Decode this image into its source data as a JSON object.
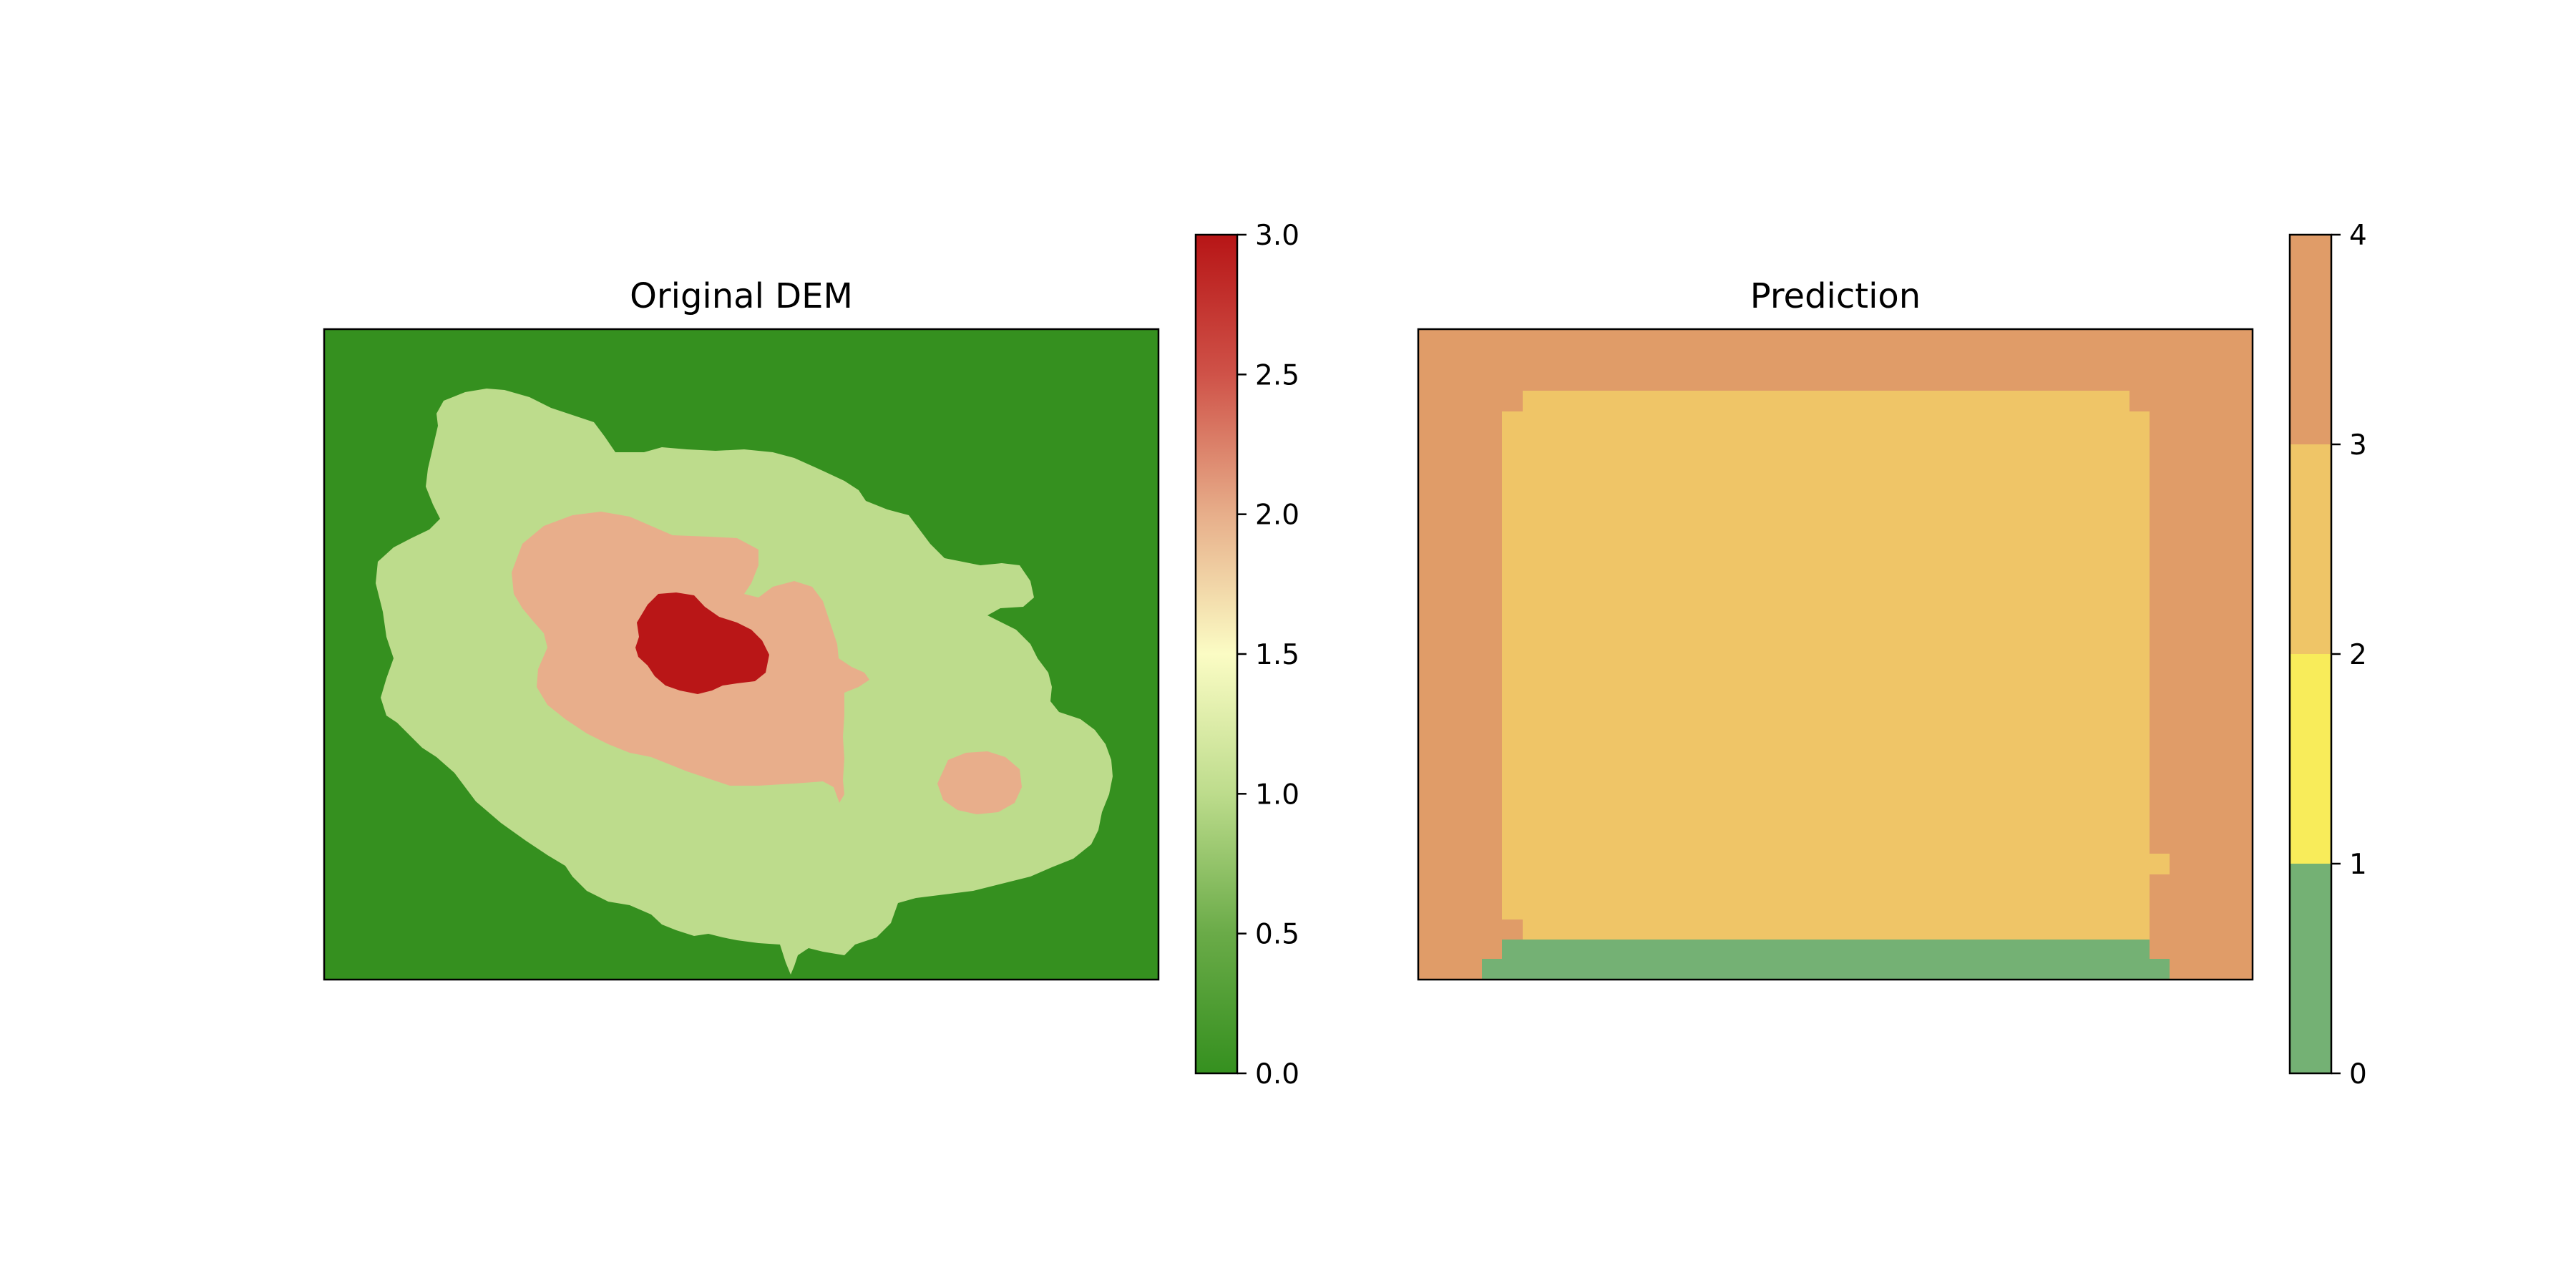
{
  "chart_data": [
    {
      "type": "heatmap",
      "title": "Original DEM",
      "xlabel": "",
      "ylabel": "",
      "axes_ticks_visible": false,
      "colorbar": {
        "type": "continuous",
        "range": [
          0.0,
          3.0
        ],
        "ticks": [
          "0.0",
          "0.5",
          "1.0",
          "1.5",
          "2.0",
          "2.5",
          "3.0"
        ],
        "colormap_stops": [
          "#35901f",
          "#6aab48",
          "#bddc8c",
          "#fbfcc4",
          "#e7ae8a",
          "#cf5248",
          "#b71516"
        ]
      },
      "regions": [
        {
          "level": 0,
          "color": "#35901f",
          "description": "background"
        },
        {
          "level": 1,
          "color": "#bddc8c"
        },
        {
          "level": 2,
          "color": "#e8ae8b"
        },
        {
          "level": 3,
          "color": "#b91617"
        }
      ]
    },
    {
      "type": "heatmap",
      "title": "Prediction",
      "xlabel": "",
      "ylabel": "",
      "axes_ticks_visible": false,
      "colorbar": {
        "type": "discrete",
        "range": [
          0,
          4
        ],
        "ticks": [
          "0",
          "1",
          "2",
          "3",
          "4"
        ],
        "bins": [
          {
            "from": 0,
            "to": 1,
            "color": "#74b174"
          },
          {
            "from": 1,
            "to": 2,
            "color": "#f8ec5a"
          },
          {
            "from": 2,
            "to": 3,
            "color": "#efc567"
          },
          {
            "from": 3,
            "to": 4,
            "color": "#e09c68"
          }
        ]
      },
      "classes": [
        {
          "value": 0,
          "color": "#74b174"
        },
        {
          "value": 2,
          "color": "#efc567"
        },
        {
          "value": 3,
          "color": "#e09c68"
        }
      ]
    }
  ]
}
